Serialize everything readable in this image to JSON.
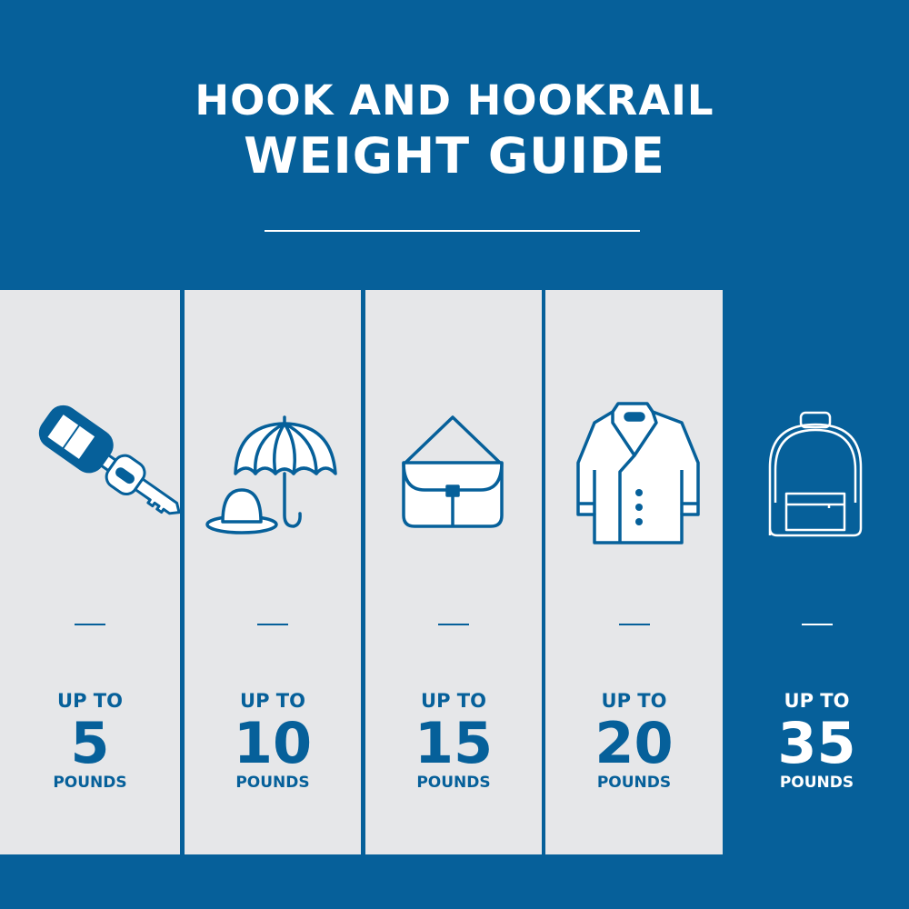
{
  "header": {
    "title_line1": "HOOK AND HOOKRAIL",
    "title_line2": "WEIGHT GUIDE"
  },
  "colors": {
    "brand_blue": "#06609a",
    "panel_gray": "#e6e7e9",
    "white": "#ffffff"
  },
  "items": [
    {
      "icon": "car-key-icon",
      "prefix": "UP TO",
      "value": "5",
      "unit": "POUNDS"
    },
    {
      "icon": "umbrella-and-hat-icon",
      "prefix": "UP TO",
      "value": "10",
      "unit": "POUNDS"
    },
    {
      "icon": "handbag-icon",
      "prefix": "UP TO",
      "value": "15",
      "unit": "POUNDS"
    },
    {
      "icon": "coat-icon",
      "prefix": "UP TO",
      "value": "20",
      "unit": "POUNDS"
    },
    {
      "icon": "backpack-icon",
      "prefix": "UP TO",
      "value": "35",
      "unit": "POUNDS"
    }
  ]
}
